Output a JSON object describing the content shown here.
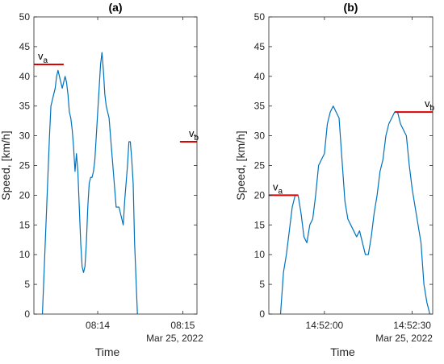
{
  "chart_data": [
    {
      "type": "line",
      "title": "(a)",
      "xlabel": "Time",
      "ylabel": "Speed, [km/h]",
      "date_label": "Mar 25, 2022",
      "ylim": [
        0,
        50
      ],
      "y_ticks": [
        "0",
        "5",
        "10",
        "15",
        "20",
        "25",
        "30",
        "35",
        "40",
        "45",
        "50"
      ],
      "xlim": [
        "08:13:15",
        "08:15:10"
      ],
      "x_ticks": [
        {
          "t": "08:14:00",
          "label": "08:14"
        },
        {
          "t": "08:15:00",
          "label": "08:15"
        }
      ],
      "series": [
        {
          "color": "#0072BD",
          "x": [
            "08:13:21",
            "08:13:22",
            "08:13:23",
            "08:13:24",
            "08:13:25",
            "08:13:26",
            "08:13:27",
            "08:13:28",
            "08:13:29",
            "08:13:30",
            "08:13:31",
            "08:13:32",
            "08:13:33",
            "08:13:34",
            "08:13:35",
            "08:13:36",
            "08:13:37",
            "08:13:38",
            "08:13:39",
            "08:13:40",
            "08:13:41",
            "08:13:42",
            "08:13:43",
            "08:13:44",
            "08:13:45",
            "08:13:46",
            "08:13:47",
            "08:13:48",
            "08:13:49",
            "08:13:50",
            "08:13:51",
            "08:13:52",
            "08:13:53",
            "08:13:54",
            "08:13:55",
            "08:13:56",
            "08:13:57",
            "08:13:58",
            "08:13:59",
            "08:14:00",
            "08:14:01",
            "08:14:02",
            "08:14:03",
            "08:14:04",
            "08:14:05",
            "08:14:06",
            "08:14:07",
            "08:14:08",
            "08:14:09",
            "08:14:10",
            "08:14:11",
            "08:14:12",
            "08:14:13",
            "08:14:14",
            "08:14:15",
            "08:14:16",
            "08:14:17",
            "08:14:18",
            "08:14:19",
            "08:14:20",
            "08:14:21",
            "08:14:22",
            "08:14:23",
            "08:14:24",
            "08:14:25",
            "08:14:26",
            "08:14:27",
            "08:14:28",
            "08:14:29",
            "08:14:30",
            "08:14:31",
            "08:14:32",
            "08:14:33",
            "08:14:34",
            "08:14:35",
            "08:14:36",
            "08:14:37",
            "08:14:38",
            "08:14:39",
            "08:14:40",
            "08:14:41",
            "08:14:42",
            "08:14:43",
            "08:14:44",
            "08:14:45",
            "08:14:46",
            "08:14:47",
            "08:14:48",
            "08:14:49",
            "08:14:50",
            "08:14:51",
            "08:14:52",
            "08:14:53",
            "08:14:54",
            "08:14:55",
            "08:14:56",
            "08:14:57",
            "08:14:58",
            "08:14:59",
            "08:15:00",
            "08:15:01",
            "08:15:02",
            "08:15:03",
            "08:15:04",
            "08:15:05",
            "08:15:06",
            "08:15:07",
            "08:15:08",
            "08:15:09"
          ],
          "y": [
            0,
            6,
            12,
            18,
            24,
            30,
            35,
            36,
            37,
            38,
            40,
            41,
            40,
            39,
            38,
            39,
            40,
            39,
            37,
            34,
            33,
            31,
            28,
            24,
            27,
            24,
            18,
            12,
            8,
            7,
            8,
            12,
            18,
            22,
            23,
            23,
            24,
            26,
            30,
            34,
            38,
            42,
            44,
            41,
            37,
            35,
            34,
            33,
            30,
            27,
            24,
            21,
            18,
            18,
            18,
            17,
            16,
            15,
            19,
            22,
            25,
            29,
            29,
            26,
            22,
            12,
            6,
            0,
            null,
            null,
            null,
            null,
            null,
            null,
            null,
            null,
            null,
            null,
            null,
            null,
            null,
            null,
            null,
            null,
            null,
            null,
            null,
            null,
            null,
            null,
            null,
            null,
            null,
            null,
            null,
            null,
            null,
            null,
            null,
            null,
            null,
            null,
            null,
            null,
            null,
            null,
            null,
            null,
            null
          ]
        }
      ],
      "annotations": [
        {
          "label": "v",
          "sub": "a",
          "value": 42,
          "x_from": "08:13:15",
          "x_to": "08:13:36"
        },
        {
          "label": "v",
          "sub": "b",
          "value": 29,
          "x_from": "08:14:58",
          "x_to": "08:15:10"
        }
      ]
    },
    {
      "type": "line",
      "title": "(b)",
      "xlabel": "Time",
      "ylabel": "Speed, [km/h]",
      "date_label": "Mar 25, 2022",
      "ylim": [
        0,
        50
      ],
      "y_ticks": [
        "0",
        "5",
        "10",
        "15",
        "20",
        "25",
        "30",
        "35",
        "40",
        "45",
        "50"
      ],
      "xlim": [
        "14:51:41",
        "14:52:37"
      ],
      "x_ticks": [
        {
          "t": "14:52:00",
          "label": "14:52:00"
        },
        {
          "t": "14:52:30",
          "label": "14:52:30"
        }
      ],
      "series": [
        {
          "color": "#0072BD",
          "x": [
            "14:51:45",
            "14:51:46",
            "14:51:47",
            "14:51:48",
            "14:51:49",
            "14:51:50",
            "14:51:51",
            "14:51:52",
            "14:51:53",
            "14:51:54",
            "14:51:55",
            "14:51:56",
            "14:51:57",
            "14:51:58",
            "14:51:59",
            "14:52:00",
            "14:52:01",
            "14:52:02",
            "14:52:03",
            "14:52:04",
            "14:52:05",
            "14:52:06",
            "14:52:07",
            "14:52:08",
            "14:52:09",
            "14:52:10",
            "14:52:11",
            "14:52:12",
            "14:52:13",
            "14:52:14",
            "14:52:15",
            "14:52:16",
            "14:52:17",
            "14:52:18",
            "14:52:19",
            "14:52:20",
            "14:52:21",
            "14:52:22",
            "14:52:23",
            "14:52:24",
            "14:52:25",
            "14:52:26",
            "14:52:27",
            "14:52:28",
            "14:52:29",
            "14:52:30",
            "14:52:31",
            "14:52:32",
            "14:52:33",
            "14:52:34",
            "14:52:35",
            "14:52:36"
          ],
          "y": [
            0,
            7,
            10,
            14,
            18,
            20,
            20,
            17,
            13,
            12,
            15,
            16,
            20,
            25,
            26,
            27,
            32,
            34,
            35,
            34,
            33,
            26,
            19,
            16,
            15,
            14,
            13,
            14,
            12,
            10,
            10,
            13,
            17,
            20,
            24,
            26,
            30,
            32,
            33,
            34,
            34,
            32,
            31,
            30,
            25,
            21,
            18,
            15,
            12,
            5,
            2,
            0
          ]
        }
      ],
      "annotations": [
        {
          "label": "v",
          "sub": "a",
          "value": 20,
          "x_from": "14:51:41",
          "x_to": "14:51:51"
        },
        {
          "label": "v",
          "sub": "b",
          "value": 34,
          "x_from": "14:52:24",
          "x_to": "14:52:37"
        }
      ]
    }
  ]
}
